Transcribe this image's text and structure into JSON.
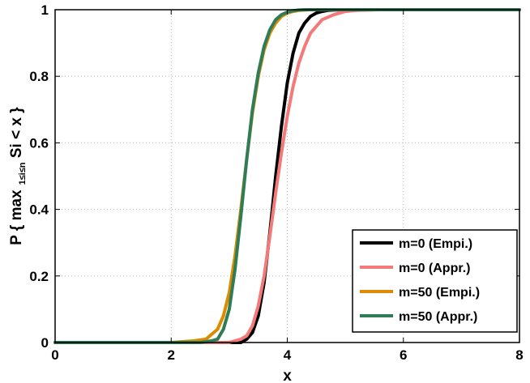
{
  "chart_data": {
    "type": "line",
    "xlabel": "x",
    "ylabel": {
      "prefix": "P { max",
      "subscript": "1≤i≤n",
      "suffix": " Si < x }"
    },
    "xlim": [
      0,
      8
    ],
    "ylim": [
      0,
      1
    ],
    "xticks": [
      "0",
      "2",
      "4",
      "6",
      "8"
    ],
    "yticks": [
      "0",
      "0.2",
      "0.4",
      "0.6",
      "0.8",
      "1"
    ],
    "grid": true,
    "legend_position": "bottom-right",
    "series": [
      {
        "name": "m=0 (Empi.)",
        "color": "#000000",
        "x": [
          0,
          3.0,
          3.2,
          3.3,
          3.4,
          3.5,
          3.6,
          3.7,
          3.8,
          3.9,
          4.0,
          4.1,
          4.2,
          4.3,
          4.4,
          4.5,
          4.6,
          4.7,
          4.8,
          5.0,
          8
        ],
        "y": [
          0,
          0,
          0.0,
          0.01,
          0.03,
          0.08,
          0.18,
          0.33,
          0.5,
          0.65,
          0.78,
          0.87,
          0.93,
          0.96,
          0.98,
          0.99,
          0.995,
          0.998,
          0.999,
          1.0,
          1.0
        ]
      },
      {
        "name": "m=0 (Appr.)",
        "color": "#f47a7a",
        "x": [
          0,
          2.8,
          3.0,
          3.1,
          3.2,
          3.3,
          3.4,
          3.5,
          3.6,
          3.7,
          3.8,
          3.9,
          4.0,
          4.1,
          4.2,
          4.3,
          4.4,
          4.5,
          4.6,
          4.8,
          5.0,
          5.2,
          5.6,
          8
        ],
        "y": [
          0,
          0,
          0.0,
          0.005,
          0.01,
          0.02,
          0.05,
          0.11,
          0.2,
          0.32,
          0.45,
          0.57,
          0.68,
          0.77,
          0.84,
          0.89,
          0.93,
          0.95,
          0.97,
          0.985,
          0.995,
          0.998,
          1.0,
          1.0
        ]
      },
      {
        "name": "m=50 (Empi.)",
        "color": "#dd8a00",
        "x": [
          0,
          2.0,
          2.4,
          2.6,
          2.8,
          2.9,
          3.0,
          3.1,
          3.2,
          3.3,
          3.4,
          3.5,
          3.6,
          3.7,
          3.8,
          3.9,
          4.0,
          4.1,
          4.2,
          4.4,
          4.6,
          8
        ],
        "y": [
          0,
          0,
          0.005,
          0.01,
          0.04,
          0.08,
          0.15,
          0.26,
          0.4,
          0.55,
          0.69,
          0.8,
          0.88,
          0.93,
          0.96,
          0.98,
          0.99,
          0.995,
          0.998,
          1.0,
          1.0,
          1.0
        ]
      },
      {
        "name": "m=50 (Appr.)",
        "color": "#2e7d57",
        "x": [
          0,
          2.5,
          2.7,
          2.8,
          2.9,
          3.0,
          3.1,
          3.2,
          3.3,
          3.4,
          3.5,
          3.6,
          3.7,
          3.8,
          3.9,
          4.0,
          4.1,
          4.2,
          4.3,
          4.5,
          8
        ],
        "y": [
          0,
          0,
          0.005,
          0.01,
          0.04,
          0.1,
          0.22,
          0.38,
          0.55,
          0.7,
          0.81,
          0.89,
          0.94,
          0.97,
          0.985,
          0.993,
          0.997,
          0.999,
          1.0,
          1.0,
          1.0
        ]
      }
    ]
  }
}
